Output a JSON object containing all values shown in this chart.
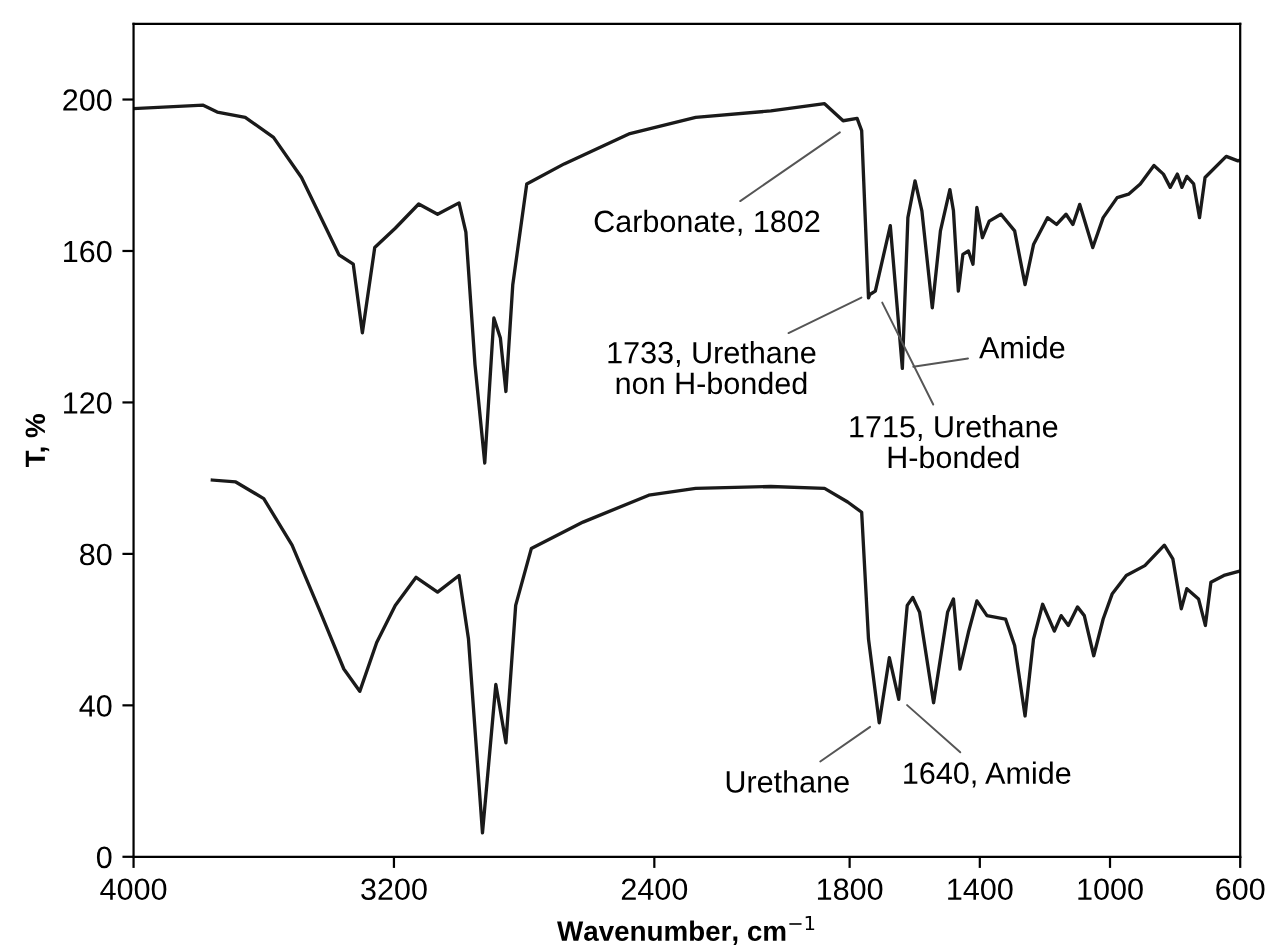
{
  "chart_data": {
    "type": "line",
    "xlabel": "Wavenumber, cm$^{−1}$",
    "ylabel": "T, %",
    "xlim": [
      4000,
      600
    ],
    "xticks": [
      4000,
      3200,
      2400,
      1800,
      1400,
      1000,
      600
    ],
    "ylim": [
      0,
      220
    ],
    "yticks": [
      0,
      40,
      80,
      120,
      160,
      200
    ],
    "grid": false,
    "legend": false,
    "series": [
      {
        "color": "#1a1a1a",
        "x": [
          4000,
          3786,
          3743,
          3657,
          3570,
          3484,
          3369,
          3325,
          3297,
          3259,
          3196,
          3124,
          3066,
          3000,
          2979,
          2951,
          2921,
          2893,
          2873,
          2856,
          2835,
          2792,
          2677,
          2475,
          2273,
          2042,
          1877,
          1820,
          1777,
          1763,
          1742,
          1738,
          1721,
          1675,
          1638,
          1621,
          1599,
          1578,
          1546,
          1521,
          1492,
          1481,
          1466,
          1452,
          1435,
          1421,
          1409,
          1392,
          1371,
          1335,
          1293,
          1261,
          1235,
          1192,
          1164,
          1135,
          1114,
          1093,
          1053,
          1021,
          978,
          943,
          907,
          865,
          836,
          815,
          793,
          779,
          764,
          743,
          725,
          708,
          643,
          607,
          600
        ],
        "values": [
          197.6,
          198.5,
          196.7,
          195.3,
          190,
          179.4,
          159,
          156.5,
          138.4,
          160.9,
          166,
          172.4,
          169.7,
          172.7,
          165,
          130,
          104,
          142.3,
          137,
          122.9,
          151,
          177.7,
          183,
          191,
          195.3,
          197,
          198.9,
          194.4,
          195,
          191.8,
          147.6,
          148.5,
          149.4,
          166.7,
          129,
          168.8,
          178.5,
          170.6,
          145,
          165.3,
          176.2,
          170.6,
          149.4,
          159.1,
          160,
          156.5,
          171.5,
          163.5,
          167.9,
          169.7,
          165.3,
          151.1,
          161.7,
          168.8,
          167,
          169.7,
          167,
          172.3,
          160.9,
          168.8,
          174.1,
          175,
          177.7,
          182.6,
          180.3,
          176.8,
          180.3,
          176.8,
          179.7,
          177.7,
          168.8,
          179.4,
          185,
          183.8,
          184
        ]
      },
      {
        "color": "#1a1a1a",
        "x": [
          3758,
          3686,
          3600,
          3513,
          3426,
          3354,
          3305,
          3253,
          3196,
          3132,
          3066,
          3000,
          2971,
          2928,
          2887,
          2856,
          2826,
          2778,
          2619,
          2417,
          2273,
          2042,
          1877,
          1806,
          1763,
          1742,
          1709,
          1678,
          1649,
          1623,
          1606,
          1585,
          1542,
          1499,
          1481,
          1461,
          1435,
          1409,
          1378,
          1321,
          1293,
          1261,
          1235,
          1207,
          1171,
          1150,
          1128,
          1100,
          1079,
          1050,
          1021,
          993,
          950,
          893,
          833,
          807,
          781,
          764,
          728,
          707,
          690,
          650,
          600
        ],
        "values": [
          99.5,
          99,
          94.6,
          82.3,
          64.6,
          49.6,
          43.7,
          56.6,
          66.4,
          73.8,
          69.9,
          74.3,
          57.5,
          6.3,
          45.5,
          30.1,
          66.4,
          81.4,
          88.4,
          95.5,
          97.3,
          97.8,
          97.3,
          93.7,
          91,
          57.5,
          35.4,
          52.6,
          41.6,
          66.4,
          68.5,
          64.6,
          40.7,
          64.6,
          68.1,
          49.6,
          59.3,
          67.6,
          63.7,
          62.8,
          55.8,
          37.2,
          57.5,
          66.7,
          59.6,
          63.7,
          61.1,
          66,
          63.7,
          53.1,
          62.8,
          69.5,
          74.3,
          76.9,
          82.3,
          78.7,
          65.5,
          70.8,
          68.1,
          61.1,
          72.5,
          74.3,
          75.5
        ]
      }
    ],
    "annotations": [
      {
        "text": "Carbonate, 1802",
        "x": 1802,
        "y": 193
      },
      {
        "text": "1733, Urethane\nnon H-bonded",
        "x": 1733,
        "y": 149
      },
      {
        "text": "1715, Urethane\nH-bonded",
        "x": 1715,
        "y": 149
      },
      {
        "text": "Amide",
        "x": 1638,
        "y": 129
      },
      {
        "text": "Urethane",
        "x": 1709,
        "y": 36
      },
      {
        "text": "1640, Amide",
        "x": 1649,
        "y": 42
      }
    ]
  }
}
